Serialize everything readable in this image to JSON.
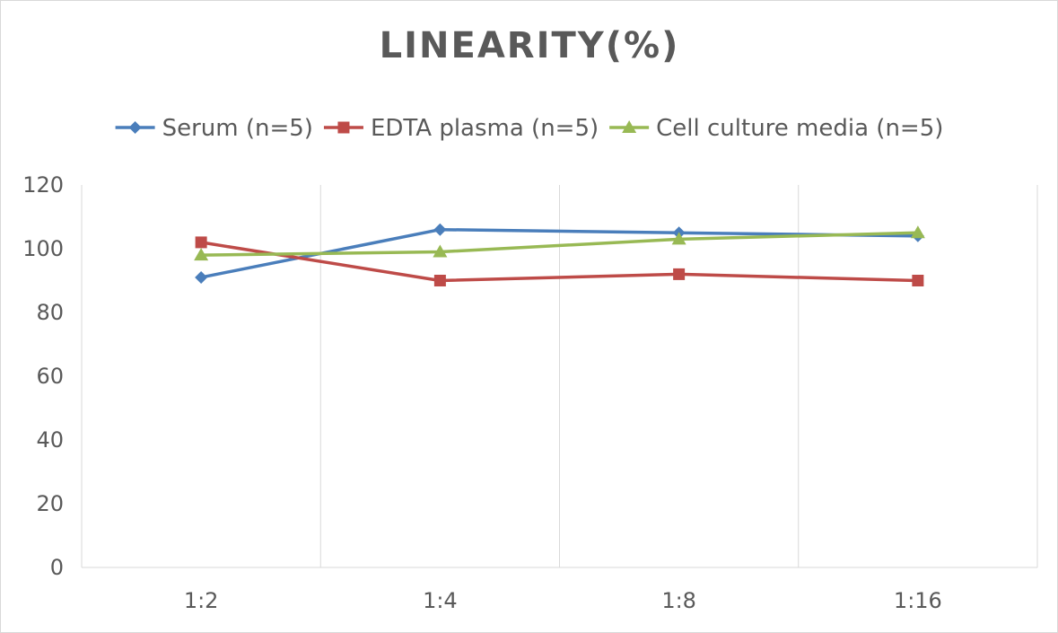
{
  "chart_data": {
    "type": "line",
    "title": "LINEARITY(%)",
    "xlabel": "",
    "ylabel": "",
    "categories": [
      "1:2",
      "1:4",
      "1:8",
      "1:16"
    ],
    "ylim": [
      0,
      120
    ],
    "yticks": [
      0,
      20,
      40,
      60,
      80,
      100,
      120
    ],
    "grid": "vertical",
    "legend_position": "top",
    "series": [
      {
        "name": "Serum (n=5)",
        "values": [
          91,
          106,
          105,
          104
        ],
        "color": "#4a7ebb",
        "marker": "diamond"
      },
      {
        "name": "EDTA plasma (n=5)",
        "values": [
          102,
          90,
          92,
          90
        ],
        "color": "#be4b48",
        "marker": "square"
      },
      {
        "name": "Cell culture media (n=5)",
        "values": [
          98,
          99,
          103,
          105
        ],
        "color": "#98b954",
        "marker": "triangle"
      }
    ]
  }
}
